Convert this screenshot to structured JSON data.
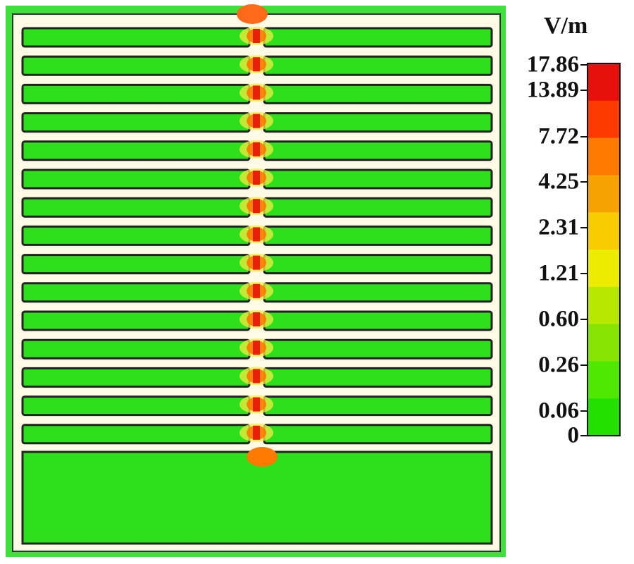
{
  "colorbar": {
    "unit": "V/m",
    "ticks": [
      "17.86",
      "13.89",
      "7.72",
      "4.25",
      "2.31",
      "1.21",
      "0.60",
      "0.26",
      "0.06",
      "0"
    ],
    "colors": [
      "#e8100a",
      "#ff3a00",
      "#ff7a00",
      "#f6a200",
      "#f8cc00",
      "#ecec00",
      "#b8e800",
      "#86e400",
      "#4ee800",
      "#22e000"
    ]
  },
  "field_map": {
    "background": "#2ee01c",
    "electrode_fill": "#fdfbe6",
    "finger_fill": "#2ee01c",
    "hotspot_color": "#e8200a",
    "finger_pairs": 15
  }
}
